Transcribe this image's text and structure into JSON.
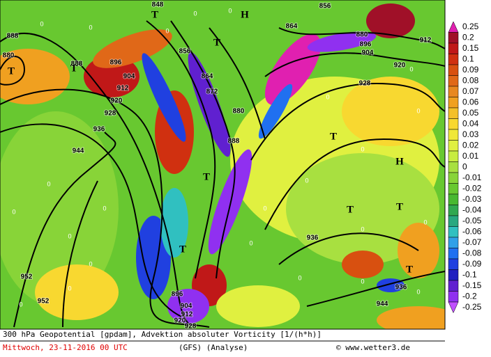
{
  "map": {
    "contour_labels": [
      "888",
      "880",
      "888",
      "896",
      "904",
      "912",
      "920",
      "928",
      "936",
      "944",
      "952",
      "952",
      "856",
      "864",
      "872",
      "880",
      "888",
      "864",
      "880",
      "896",
      "904",
      "912",
      "920",
      "928",
      "936",
      "936",
      "944",
      "896",
      "904",
      "912",
      "920",
      "928",
      "848",
      "856"
    ],
    "pressure_centers": [
      "T",
      "T",
      "T",
      "T",
      "H",
      "T",
      "T",
      "T",
      "H",
      "T",
      "T",
      "T"
    ],
    "vorticity_zero_labels": [
      "0",
      "0",
      "0",
      "0",
      "0",
      "0",
      "0",
      "0",
      "0",
      "0",
      "0",
      "0",
      "0",
      "0",
      "0",
      "0",
      "0",
      "0",
      "0",
      "0",
      "0",
      "0",
      "0",
      "0"
    ]
  },
  "legend": {
    "items": [
      {
        "label": "0.25",
        "color": "#e020b0"
      },
      {
        "label": "0.2",
        "color": "#a01028"
      },
      {
        "label": "0.15",
        "color": "#c01818"
      },
      {
        "label": "0.1",
        "color": "#d03010"
      },
      {
        "label": "0.09",
        "color": "#d85010"
      },
      {
        "label": "0.08",
        "color": "#e06818"
      },
      {
        "label": "0.07",
        "color": "#e88820"
      },
      {
        "label": "0.06",
        "color": "#f0a020"
      },
      {
        "label": "0.05",
        "color": "#f4c028"
      },
      {
        "label": "0.04",
        "color": "#f8d830"
      },
      {
        "label": "0.03",
        "color": "#f0e838"
      },
      {
        "label": "0.02",
        "color": "#e0f040"
      },
      {
        "label": "0.01",
        "color": "#c8ec40"
      },
      {
        "label": "0",
        "color": "#a8e040"
      },
      {
        "label": "-0.01",
        "color": "#88d438"
      },
      {
        "label": "-0.02",
        "color": "#68c830"
      },
      {
        "label": "-0.03",
        "color": "#48b830"
      },
      {
        "label": "-0.04",
        "color": "#30a850"
      },
      {
        "label": "-0.05",
        "color": "#28a880"
      },
      {
        "label": "-0.06",
        "color": "#30c0c0"
      },
      {
        "label": "-0.07",
        "color": "#30a0e8"
      },
      {
        "label": "-0.08",
        "color": "#2070f0"
      },
      {
        "label": "-0.09",
        "color": "#2040e0"
      },
      {
        "label": "-0.1",
        "color": "#2020c0"
      },
      {
        "label": "-0.15",
        "color": "#6020d0"
      },
      {
        "label": "-0.2",
        "color": "#9030f0"
      },
      {
        "label": "-0.25",
        "color": "#c050ff"
      }
    ]
  },
  "footer": {
    "line1": "300 hPa Geopotential [gpdam], Advektion absoluter Vorticity [1/(h*h)]",
    "date": "Mittwoch, 23-11-2016  00 UTC",
    "model": "(GFS)   (Analyse)",
    "credit": "© www.wetter3.de"
  }
}
